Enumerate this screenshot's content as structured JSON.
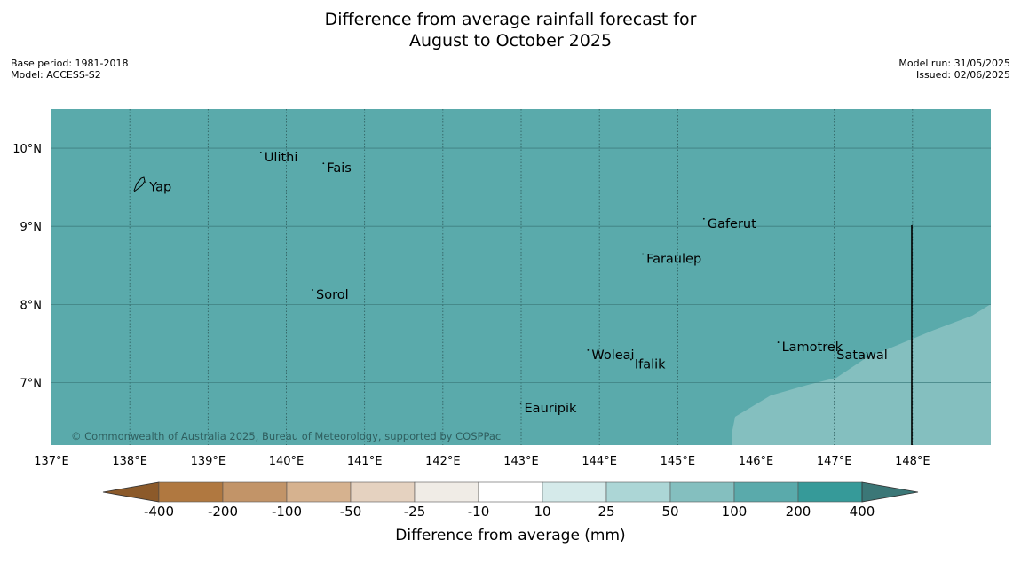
{
  "title_line1": "Difference from average rainfall forecast for",
  "title_line2": "August to October 2025",
  "base_period": "Base period: 1981-2018",
  "model": "Model: ACCESS-S2",
  "model_run": "Model run: 31/05/2025",
  "issued": "Issued: 02/06/2025",
  "copyright": "© Commonwealth of Australia 2025, Bureau of Meteorology, supported by COSPPac",
  "map": {
    "lon_range": [
      137,
      149
    ],
    "lat_range": [
      6.2,
      10.5
    ],
    "lon_ticks": [
      "137°E",
      "138°E",
      "139°E",
      "140°E",
      "141°E",
      "142°E",
      "143°E",
      "144°E",
      "145°E",
      "146°E",
      "147°E",
      "148°E"
    ],
    "lat_ticks": [
      "7°N",
      "8°N",
      "9°N",
      "10°N"
    ],
    "main_fill_color": "#5aaaab",
    "lower_fill_color": "#84bfbf",
    "places": [
      {
        "name": "Yap",
        "lon": 138.25,
        "lat": 9.52
      },
      {
        "name": "Ulithi",
        "lon": 139.72,
        "lat": 9.9
      },
      {
        "name": "Fais",
        "lon": 140.52,
        "lat": 9.76
      },
      {
        "name": "Gaferut",
        "lon": 145.38,
        "lat": 9.05
      },
      {
        "name": "Faraulep",
        "lon": 144.6,
        "lat": 8.6
      },
      {
        "name": "Sorol",
        "lon": 140.38,
        "lat": 8.14
      },
      {
        "name": "Lamotrek",
        "lon": 146.33,
        "lat": 7.47
      },
      {
        "name": "Woleai",
        "lon": 143.9,
        "lat": 7.37
      },
      {
        "name": "Ifalik",
        "lon": 144.45,
        "lat": 7.25
      },
      {
        "name": "Satawal",
        "lon": 147.03,
        "lat": 7.37
      },
      {
        "name": "Eauripik",
        "lon": 143.04,
        "lat": 6.69
      }
    ]
  },
  "colorbar": {
    "title": "Difference from average (mm)",
    "labels": [
      "-400",
      "-200",
      "-100",
      "-50",
      "-25",
      "-10",
      "10",
      "25",
      "50",
      "100",
      "200",
      "400"
    ],
    "colors": [
      "#b07840",
      "#c29468",
      "#d6b28f",
      "#e5d2c0",
      "#f0ece6",
      "#ffffff",
      "#d5eaea",
      "#acd6d6",
      "#84bfbf",
      "#5aaaab",
      "#369a99"
    ],
    "under_color": "#8c5a2a",
    "over_color": "#3b7777"
  }
}
